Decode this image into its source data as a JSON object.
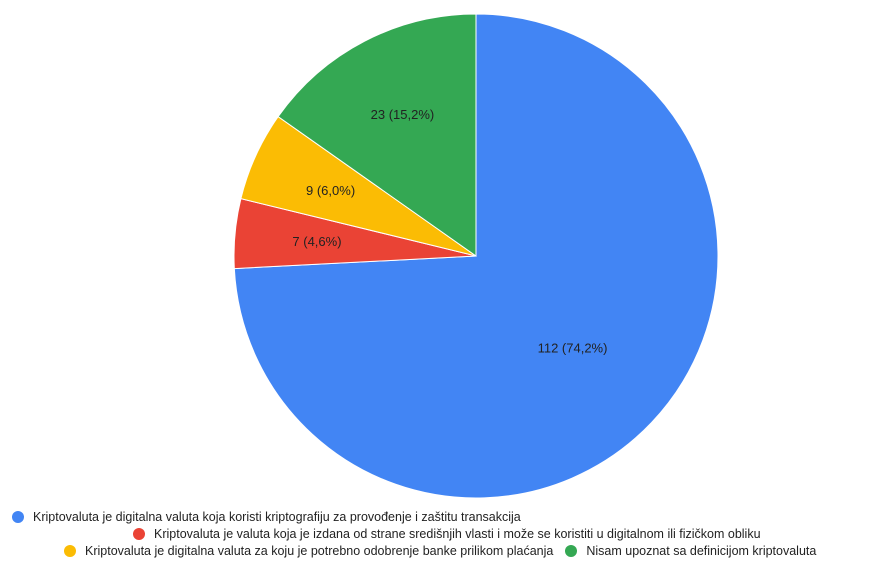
{
  "chart_data": {
    "type": "pie",
    "title": "",
    "slices": [
      {
        "label": "Kriptovaluta je digitalna valuta koja koristi kriptografiju za provođenje i zaštitu transakcija",
        "value": 112,
        "percent_text": "74,2%",
        "data_label": "112 (74,2%)",
        "color": "#4285F4"
      },
      {
        "label": "Kriptovaluta je valuta koja je izdana od strane središnjih vlasti i može se koristiti u digitalnom ili fizičkom obliku",
        "value": 7,
        "percent_text": "4,6%",
        "data_label": "7 (4,6%)",
        "color": "#EA4335"
      },
      {
        "label": "Kriptovaluta je digitalna valuta za koju je potrebno odobrenje banke prilikom plaćanja",
        "value": 9,
        "percent_text": "6,0%",
        "data_label": "9 (6,0%)",
        "color": "#FBBC04"
      },
      {
        "label": "Nisam upoznat sa definicijom kriptovaluta",
        "value": 23,
        "percent_text": "15,2%",
        "data_label": "23 (15,2%)",
        "color": "#34A853"
      }
    ],
    "start_angle": "12 o'clock",
    "direction": "clockwise",
    "legend_position": "bottom"
  }
}
